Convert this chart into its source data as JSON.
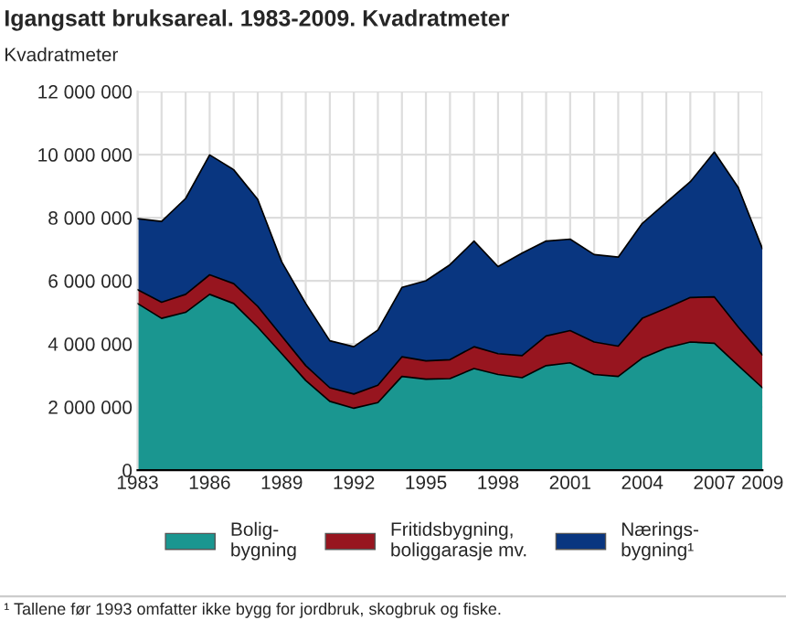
{
  "chart_data": {
    "type": "area",
    "stacked": true,
    "title": "Igangsatt bruksareal. 1983-2009. Kvadratmeter",
    "ylabel": "Kvadratmeter",
    "x": [
      1983,
      1984,
      1985,
      1986,
      1987,
      1988,
      1989,
      1990,
      1991,
      1992,
      1993,
      1994,
      1995,
      1996,
      1997,
      1998,
      1999,
      2000,
      2001,
      2002,
      2003,
      2004,
      2005,
      2006,
      2007,
      2008,
      2009
    ],
    "series": [
      {
        "name": "Bolig-\nbygning",
        "color": "#1a9690",
        "values": [
          5280000,
          4810000,
          5000000,
          5570000,
          5280000,
          4530000,
          3690000,
          2840000,
          2180000,
          1960000,
          2140000,
          2970000,
          2880000,
          2900000,
          3220000,
          3030000,
          2930000,
          3310000,
          3400000,
          3030000,
          2970000,
          3550000,
          3870000,
          4060000,
          4020000,
          3310000,
          2610000
        ]
      },
      {
        "name": "Fritidsbygning,\nboliggarasje mv.",
        "color": "#97151f",
        "values": [
          440000,
          510000,
          570000,
          620000,
          630000,
          660000,
          560000,
          470000,
          430000,
          450000,
          550000,
          620000,
          580000,
          600000,
          690000,
          660000,
          700000,
          940000,
          1020000,
          1030000,
          960000,
          1260000,
          1260000,
          1410000,
          1470000,
          1220000,
          1040000
        ]
      },
      {
        "name": "Nærings-\nbygning¹",
        "color": "#093680",
        "values": [
          2250000,
          2560000,
          3040000,
          3800000,
          3610000,
          3390000,
          2350000,
          1970000,
          1490000,
          1500000,
          1750000,
          2200000,
          2540000,
          3010000,
          3350000,
          2760000,
          3250000,
          3010000,
          2900000,
          2770000,
          2820000,
          3010000,
          3350000,
          3670000,
          4590000,
          4420000,
          3370000
        ]
      }
    ],
    "xlim": [
      1983,
      2009
    ],
    "xticks": [
      1983,
      {
        "value": 1984,
        "label": null
      },
      {
        "value": 1985,
        "label": null
      },
      1986,
      {
        "value": 1987,
        "label": null
      },
      {
        "value": 1988,
        "label": null
      },
      1989,
      {
        "value": 1990,
        "label": null
      },
      {
        "value": 1991,
        "label": null
      },
      1992,
      {
        "value": 1993,
        "label": null
      },
      {
        "value": 1994,
        "label": null
      },
      1995,
      {
        "value": 1996,
        "label": null
      },
      {
        "value": 1997,
        "label": null
      },
      1998,
      {
        "value": 1999,
        "label": null
      },
      {
        "value": 2000,
        "label": null
      },
      2001,
      {
        "value": 2002,
        "label": null
      },
      {
        "value": 2003,
        "label": null
      },
      2004,
      {
        "value": 2005,
        "label": null
      },
      {
        "value": 2006,
        "label": null
      },
      2007,
      {
        "value": 2008,
        "label": null
      },
      2009
    ],
    "ylim": [
      0,
      12000000
    ],
    "yticks": [
      0,
      {
        "value": 2000000,
        "label": "2 000 000"
      },
      {
        "value": 4000000,
        "label": "4 000 000"
      },
      {
        "value": 6000000,
        "label": "6 000 000"
      },
      {
        "value": 8000000,
        "label": "8 000 000"
      },
      {
        "value": 10000000,
        "label": "10 000 000"
      },
      {
        "value": 12000000,
        "label": "12 000 000"
      }
    ],
    "grid": true,
    "legend": "bottom",
    "annotations": [
      "¹ Tallene før 1993 omfatter ikke bygg for jordbruk, skogbruk og fiske."
    ]
  }
}
